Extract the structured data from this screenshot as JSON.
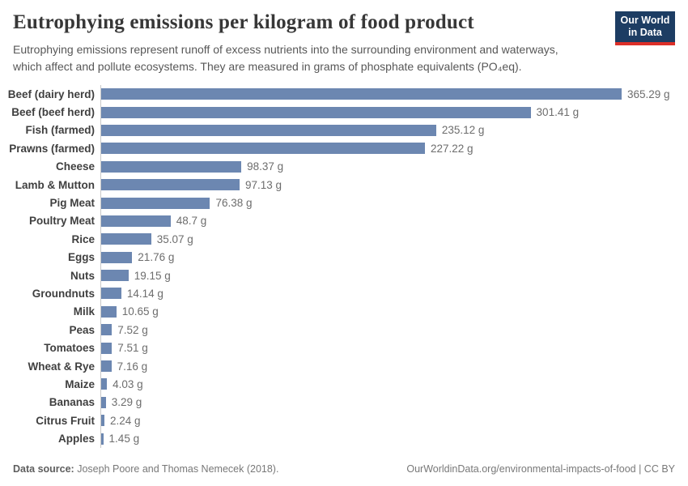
{
  "header": {
    "title": "Eutrophying emissions per kilogram of food product",
    "subtitle_line1": "Eutrophying emissions represent runoff of excess nutrients into the surrounding environment and waterways,",
    "subtitle_line2": "which affect and pollute ecosystems. They are measured in grams of phosphate equivalents (PO₄eq)."
  },
  "logo": {
    "line1": "Our World",
    "line2": "in Data",
    "bg_color": "#1d3d63",
    "accent_color": "#dc2f28"
  },
  "chart_data": {
    "type": "bar",
    "orientation": "horizontal",
    "title": "Eutrophying emissions per kilogram of food product",
    "xlabel": "",
    "ylabel": "",
    "xlim": [
      0,
      365.29
    ],
    "grid": false,
    "legend": "none",
    "bar_color": "#6c87b1",
    "categories": [
      "Beef (dairy herd)",
      "Beef (beef herd)",
      "Fish (farmed)",
      "Prawns (farmed)",
      "Cheese",
      "Lamb & Mutton",
      "Pig Meat",
      "Poultry Meat",
      "Rice",
      "Eggs",
      "Nuts",
      "Groundnuts",
      "Milk",
      "Peas",
      "Tomatoes",
      "Wheat & Rye",
      "Maize",
      "Bananas",
      "Citrus Fruit",
      "Apples"
    ],
    "values": [
      365.29,
      301.41,
      235.12,
      227.22,
      98.37,
      97.13,
      76.38,
      48.7,
      35.07,
      21.76,
      19.15,
      14.14,
      10.65,
      7.52,
      7.51,
      7.16,
      4.03,
      3.29,
      2.24,
      1.45
    ],
    "value_labels": [
      "365.29 g",
      "301.41 g",
      "235.12 g",
      "227.22 g",
      "98.37 g",
      "97.13 g",
      "76.38 g",
      "48.7 g",
      "35.07 g",
      "21.76 g",
      "19.15 g",
      "14.14 g",
      "10.65 g",
      "7.52 g",
      "7.51 g",
      "7.16 g",
      "4.03 g",
      "3.29 g",
      "2.24 g",
      "1.45 g"
    ]
  },
  "footer": {
    "source_label": "Data source:",
    "source_text": "Joseph Poore and Thomas Nemecek (2018).",
    "credit": "OurWorldinData.org/environmental-impacts-of-food | CC BY"
  }
}
